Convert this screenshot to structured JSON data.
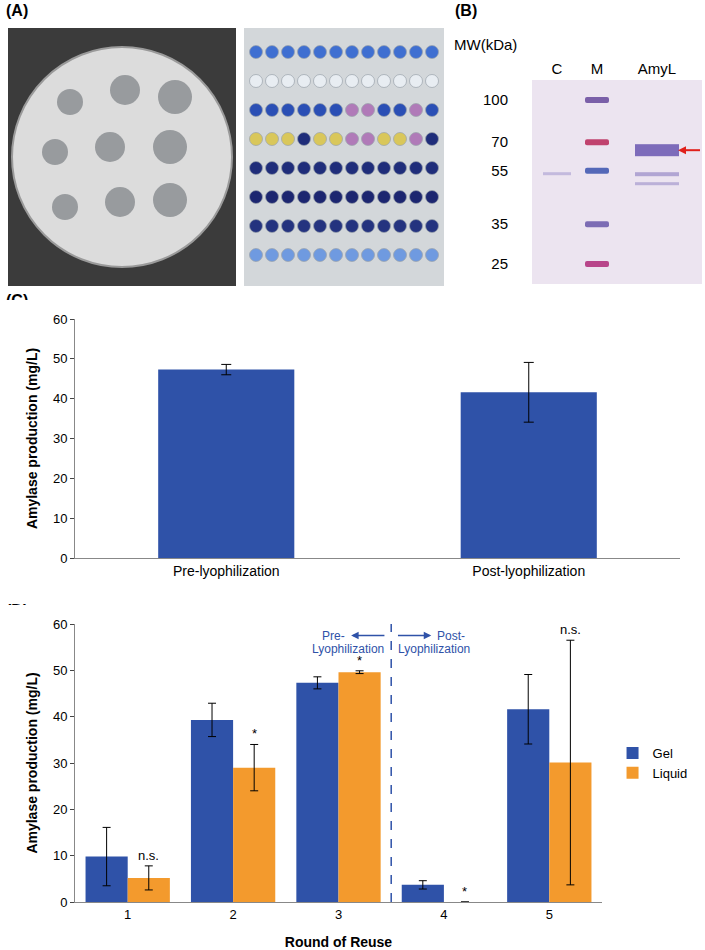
{
  "panel_labels": [
    "(A)",
    "(B)",
    "(C)",
    "(D)"
  ],
  "gel": {
    "axis_title": "MW(kDa)",
    "markers": [
      100,
      70,
      55,
      35,
      25
    ],
    "lanes": [
      "C",
      "M",
      "AmyL"
    ]
  },
  "chart_data": [
    {
      "type": "bar",
      "categories": [
        "Pre-lyophilization",
        "Post-lyophilization"
      ],
      "values": [
        47.3,
        41.6
      ],
      "errors": [
        1.3,
        7.5
      ],
      "color": "#2f52a8",
      "y_label": "Amylase production (mg/L)",
      "ylim": [
        0,
        60
      ],
      "yticks": [
        0,
        10,
        20,
        30,
        40,
        50,
        60
      ],
      "grid": false
    },
    {
      "type": "bar",
      "categories": [
        "1",
        "2",
        "3",
        "4",
        "5"
      ],
      "series": [
        {
          "name": "Gel",
          "color": "#2f52a8",
          "values": [
            9.8,
            39.3,
            47.3,
            3.7,
            41.6
          ],
          "errors": [
            6.3,
            3.6,
            1.3,
            0.9,
            7.5
          ]
        },
        {
          "name": "Liquid",
          "color": "#f39a2d",
          "values": [
            5.2,
            29.0,
            49.6,
            0,
            30.1
          ],
          "errors": [
            2.6,
            5.0,
            0.3,
            0,
            26.4
          ]
        }
      ],
      "significance": [
        "n.s.",
        "*",
        "*",
        "*",
        "n.s."
      ],
      "annotations": [
        "Pre-\nLyophilization",
        "Post-\nLyophilization"
      ],
      "x_label": "Round of Reuse",
      "y_label": "Amylase production (mg/L)",
      "ylim": [
        0,
        60
      ],
      "yticks": [
        0,
        10,
        20,
        30,
        40,
        50,
        60
      ],
      "grid": false,
      "legend": "right"
    }
  ]
}
